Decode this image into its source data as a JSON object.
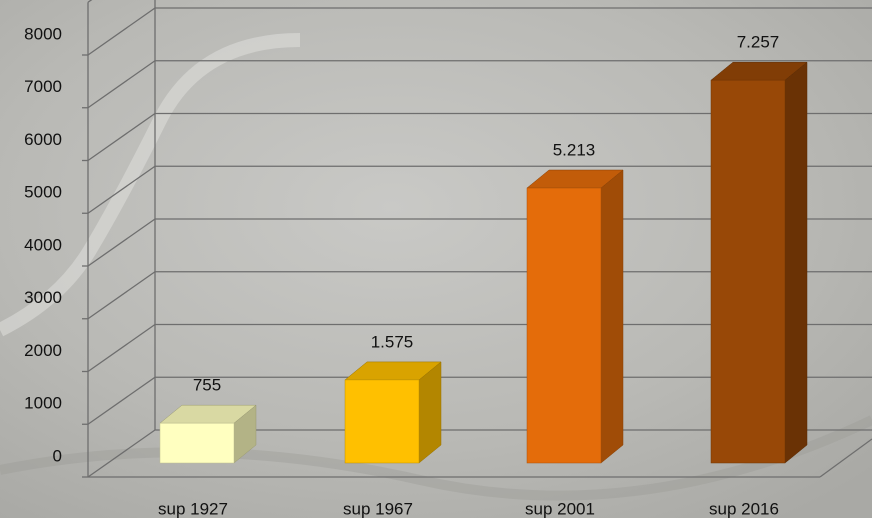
{
  "chart_data": {
    "type": "bar3d",
    "categories": [
      "sup 1927",
      "sup 1967",
      "sup 2001",
      "sup 2016"
    ],
    "values": [
      755,
      1575,
      5213,
      7257
    ],
    "value_labels": [
      "755",
      "1.575",
      "5.213",
      "7.257"
    ],
    "colors": [
      "#ffffc0",
      "#ffc000",
      "#e46c0a",
      "#984807"
    ],
    "ylim": [
      0,
      9000
    ],
    "yticks": [
      0,
      1000,
      2000,
      3000,
      4000,
      5000,
      6000,
      7000,
      8000
    ],
    "grid": true
  }
}
